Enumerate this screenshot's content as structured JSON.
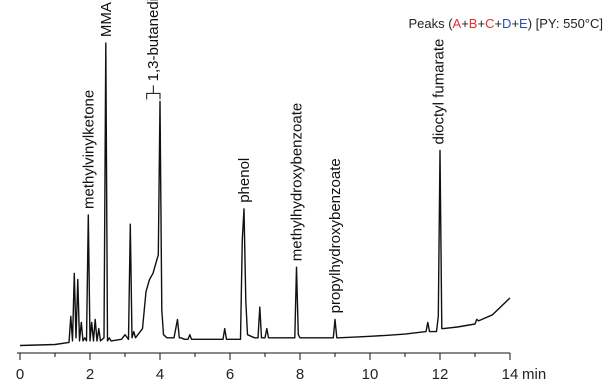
{
  "chart_data": {
    "type": "line",
    "title_parts": [
      {
        "text": "Peaks (",
        "color": "#222222"
      },
      {
        "text": "A",
        "color": "#e0312b"
      },
      {
        "text": "+",
        "color": "#222222"
      },
      {
        "text": "B",
        "color": "#e0312b"
      },
      {
        "text": "+",
        "color": "#222222"
      },
      {
        "text": "C",
        "color": "#e0312b"
      },
      {
        "text": "+",
        "color": "#222222"
      },
      {
        "text": "D",
        "color": "#2b4fb5"
      },
      {
        "text": "+",
        "color": "#222222"
      },
      {
        "text": "E",
        "color": "#2b4fb5"
      },
      {
        "text": ") [PY: 550°C]",
        "color": "#222222"
      }
    ],
    "xlabel": "min",
    "xlim": [
      0,
      14
    ],
    "xticks": [
      0,
      2,
      4,
      6,
      8,
      10,
      12,
      14
    ],
    "ylim": [
      0,
      100
    ],
    "grid": false,
    "line_color": "#111111",
    "series": [
      {
        "x": [
          0.0,
          1.0,
          1.4,
          1.45,
          1.5,
          1.55,
          1.6,
          1.65,
          1.7,
          1.75,
          1.8,
          1.85,
          1.9,
          1.95,
          2.0,
          2.05,
          2.1,
          2.15,
          2.2,
          2.25,
          2.3,
          2.4,
          2.45,
          2.5,
          2.55,
          2.6,
          2.9,
          3.0,
          3.1,
          3.15,
          3.2,
          3.25,
          3.3,
          3.5,
          3.6,
          3.7,
          3.8,
          3.9,
          3.95,
          4.0,
          4.05,
          4.1,
          4.2,
          4.4,
          4.5,
          4.55,
          4.6,
          4.7,
          4.8,
          4.85,
          4.9,
          5.0,
          5.5,
          5.8,
          5.85,
          5.9,
          6.0,
          6.3,
          6.35,
          6.4,
          6.45,
          6.5,
          6.7,
          6.8,
          6.85,
          6.9,
          7.0,
          7.05,
          7.1,
          7.5,
          7.85,
          7.9,
          7.95,
          8.0,
          8.2,
          8.5,
          8.95,
          9.0,
          9.05,
          9.1,
          9.5,
          10.0,
          10.5,
          11.0,
          11.6,
          11.65,
          11.7,
          11.9,
          11.95,
          12.0,
          12.05,
          12.1,
          12.5,
          13.0,
          13.05,
          13.1,
          13.5,
          14.0
        ],
        "y": [
          0.5,
          0.8,
          1.5,
          10,
          2,
          24,
          3,
          22,
          2,
          8,
          2,
          3,
          2,
          43,
          2,
          8,
          2,
          9,
          2,
          6,
          2,
          3,
          99,
          2,
          3,
          2,
          2.5,
          4,
          2.5,
          40,
          3,
          5,
          3,
          6,
          18,
          22,
          24,
          28,
          30,
          80,
          12,
          4,
          3,
          3,
          9,
          3,
          3,
          2.5,
          2.5,
          4,
          2.5,
          2.5,
          2.5,
          2.5,
          6,
          2.5,
          2.5,
          2.5,
          35,
          45,
          15,
          4,
          3,
          3,
          13,
          3,
          3,
          6,
          3,
          3,
          3,
          26,
          4,
          3,
          3,
          3,
          3,
          9,
          3,
          3,
          3.2,
          3.5,
          3.8,
          4.2,
          5,
          8,
          5,
          5,
          10,
          64,
          6,
          6,
          6.5,
          7.5,
          9,
          8.5,
          10.5,
          16
        ]
      }
    ],
    "annotations": [
      {
        "text": "methylvinylketone",
        "x": 1.95,
        "y": 43,
        "bracket": false
      },
      {
        "text": "MMA",
        "x": 2.45,
        "y": 99,
        "bracket": false
      },
      {
        "text": "1,3-butanediol",
        "x": 3.8,
        "y": 80,
        "bracket": true,
        "x_from": 3.62,
        "x_to": 4.0
      },
      {
        "text": "phenol",
        "x": 6.4,
        "y": 45,
        "bracket": false
      },
      {
        "text": "methylhydroxybenzoate",
        "x": 7.9,
        "y": 26,
        "bracket": false
      },
      {
        "text": "propylhydroxybenzoate",
        "x": 9.0,
        "y": 9,
        "bracket": false
      },
      {
        "text": "dioctyl fumarate",
        "x": 11.95,
        "y": 64,
        "bracket": false
      }
    ]
  }
}
